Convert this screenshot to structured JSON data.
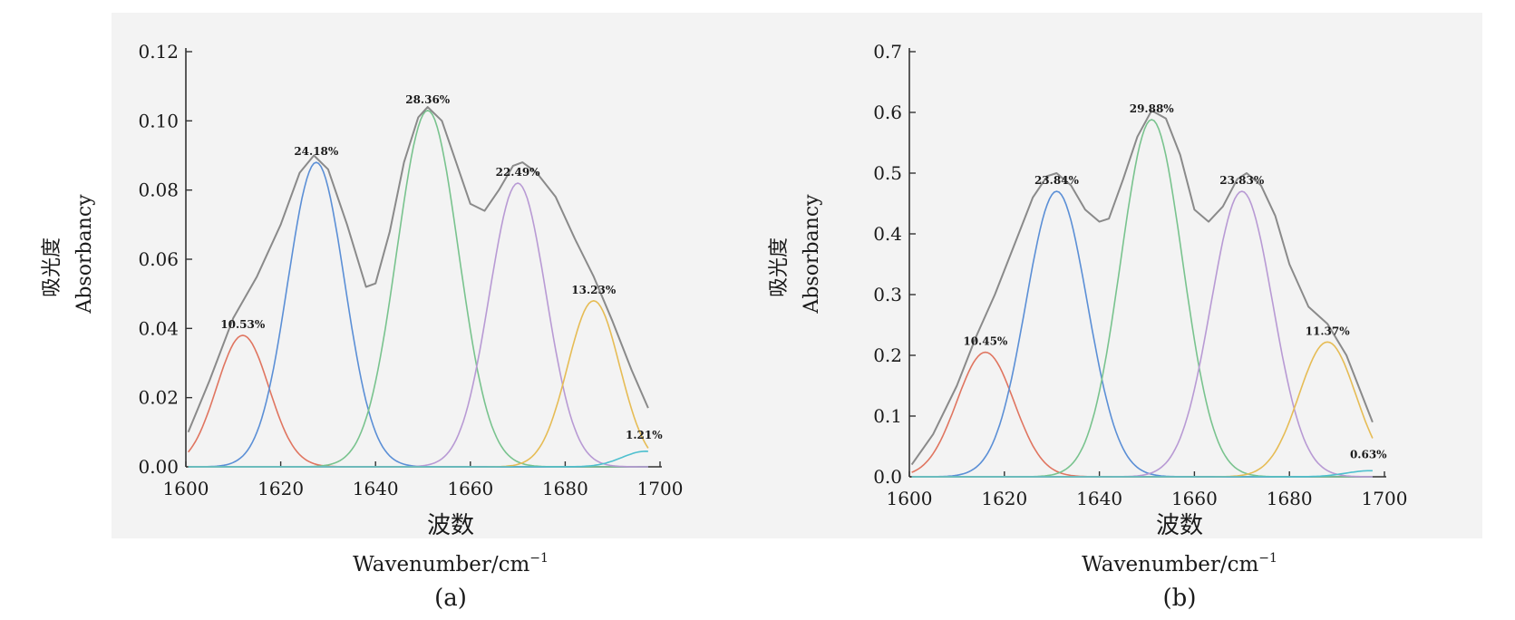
{
  "colors": {
    "background_panel": "#f3f3f3",
    "axis": "#333333",
    "sum_curve": "#8a8a8a",
    "peak_colors": [
      "#e07560",
      "#5b8fd6",
      "#79c38e",
      "#b89ad4",
      "#e6bc55",
      "#4fc0cf"
    ]
  },
  "chart_data": [
    {
      "type": "line",
      "panel_label": "(a)",
      "ylabel_cn": "吸光度",
      "ylabel_en": "Absorbancy",
      "xlabel_cn": "波数",
      "xlabel_en": "Wavenumber/cm",
      "xlabel_sup": "−1",
      "xlim": [
        1600,
        1700
      ],
      "ylim": [
        0,
        0.12
      ],
      "xticks": [
        1600,
        1620,
        1640,
        1660,
        1680,
        1700
      ],
      "yticks": [
        "0.00",
        "0.02",
        "0.04",
        "0.06",
        "0.08",
        "0.10",
        "0.12"
      ],
      "peaks": [
        {
          "center": 1612,
          "height": 0.038,
          "width": 5.5,
          "label": "10.53%"
        },
        {
          "center": 1627.5,
          "height": 0.088,
          "width": 6.0,
          "label": "24.18%"
        },
        {
          "center": 1651,
          "height": 0.103,
          "width": 6.5,
          "label": "28.36%"
        },
        {
          "center": 1670,
          "height": 0.082,
          "width": 6.0,
          "label": "22.49%"
        },
        {
          "center": 1686,
          "height": 0.048,
          "width": 5.5,
          "label": "13.23%"
        },
        {
          "center": 1697,
          "height": 0.0045,
          "width": 5.0,
          "label": "1.21%"
        }
      ],
      "spectrum": [
        [
          1600.5,
          0.01
        ],
        [
          1605,
          0.025
        ],
        [
          1610,
          0.043
        ],
        [
          1615,
          0.055
        ],
        [
          1620,
          0.07
        ],
        [
          1624,
          0.085
        ],
        [
          1627,
          0.09
        ],
        [
          1630,
          0.086
        ],
        [
          1634,
          0.07
        ],
        [
          1638,
          0.052
        ],
        [
          1640,
          0.053
        ],
        [
          1643,
          0.068
        ],
        [
          1646,
          0.088
        ],
        [
          1649,
          0.101
        ],
        [
          1651,
          0.104
        ],
        [
          1654,
          0.1
        ],
        [
          1657,
          0.088
        ],
        [
          1660,
          0.076
        ],
        [
          1663,
          0.074
        ],
        [
          1666,
          0.08
        ],
        [
          1669,
          0.087
        ],
        [
          1671,
          0.088
        ],
        [
          1674,
          0.085
        ],
        [
          1678,
          0.078
        ],
        [
          1682,
          0.066
        ],
        [
          1686,
          0.055
        ],
        [
          1690,
          0.042
        ],
        [
          1694,
          0.028
        ],
        [
          1697.5,
          0.017
        ]
      ]
    },
    {
      "type": "line",
      "panel_label": "(b)",
      "ylabel_cn": "吸光度",
      "ylabel_en": "Absorbancy",
      "xlabel_cn": "波数",
      "xlabel_en": "Wavenumber/cm",
      "xlabel_sup": "−1",
      "xlim": [
        1600,
        1700
      ],
      "ylim": [
        0,
        0.7
      ],
      "xticks": [
        1600,
        1620,
        1640,
        1660,
        1680,
        1700
      ],
      "yticks": [
        "0.0",
        "0.1",
        "0.2",
        "0.3",
        "0.4",
        "0.5",
        "0.6",
        "0.7"
      ],
      "peaks": [
        {
          "center": 1616,
          "height": 0.205,
          "width": 6.0,
          "label": "10.45%"
        },
        {
          "center": 1631,
          "height": 0.47,
          "width": 6.5,
          "label": "23.84%"
        },
        {
          "center": 1651,
          "height": 0.588,
          "width": 6.5,
          "label": "29.88%"
        },
        {
          "center": 1670,
          "height": 0.47,
          "width": 6.5,
          "label": "23.83%"
        },
        {
          "center": 1688,
          "height": 0.222,
          "width": 6.0,
          "label": "11.37%"
        },
        {
          "center": 1697,
          "height": 0.01,
          "width": 5.0,
          "label": "0.63%"
        }
      ],
      "spectrum": [
        [
          1600.5,
          0.02
        ],
        [
          1605,
          0.07
        ],
        [
          1610,
          0.15
        ],
        [
          1614,
          0.23
        ],
        [
          1618,
          0.3
        ],
        [
          1622,
          0.38
        ],
        [
          1626,
          0.46
        ],
        [
          1629,
          0.495
        ],
        [
          1631,
          0.5
        ],
        [
          1634,
          0.48
        ],
        [
          1637,
          0.44
        ],
        [
          1640,
          0.42
        ],
        [
          1642,
          0.425
        ],
        [
          1645,
          0.49
        ],
        [
          1648,
          0.56
        ],
        [
          1651,
          0.603
        ],
        [
          1654,
          0.59
        ],
        [
          1657,
          0.53
        ],
        [
          1660,
          0.44
        ],
        [
          1663,
          0.42
        ],
        [
          1666,
          0.445
        ],
        [
          1669,
          0.49
        ],
        [
          1671,
          0.5
        ],
        [
          1674,
          0.48
        ],
        [
          1677,
          0.43
        ],
        [
          1680,
          0.35
        ],
        [
          1684,
          0.28
        ],
        [
          1688,
          0.252
        ],
        [
          1692,
          0.2
        ],
        [
          1697.5,
          0.09
        ]
      ]
    }
  ]
}
